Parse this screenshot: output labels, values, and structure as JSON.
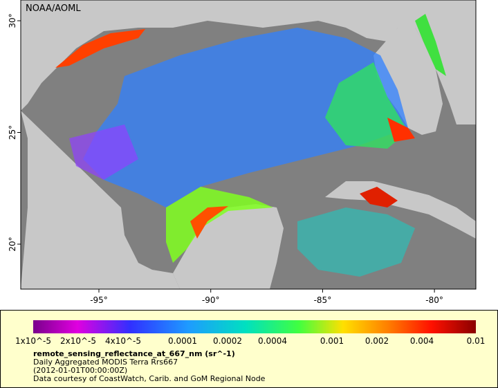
{
  "map": {
    "credit": "NOAA/AOML",
    "xticks": [
      "-95°",
      "-90°",
      "-85°",
      "-80°"
    ],
    "yticks": [
      "30°",
      "25°",
      "20°"
    ]
  },
  "colorbar": {
    "ticks": [
      "1x10^-5",
      "2x10^-5",
      "4x10^-5",
      "0.0001",
      "0.0002",
      "0.0004",
      "0.001",
      "0.002",
      "0.004",
      "0.01"
    ]
  },
  "caption": {
    "title": "remote_sensing_reflectance_at_667_nm (sr^-1)",
    "lines": [
      "Daily Aggregated MODIS Terra Rrs667",
      "(2012-01-01T00:00:00Z)",
      "Data courtesy of CoastWatch, Carib. and GoM Regional Node"
    ]
  }
}
